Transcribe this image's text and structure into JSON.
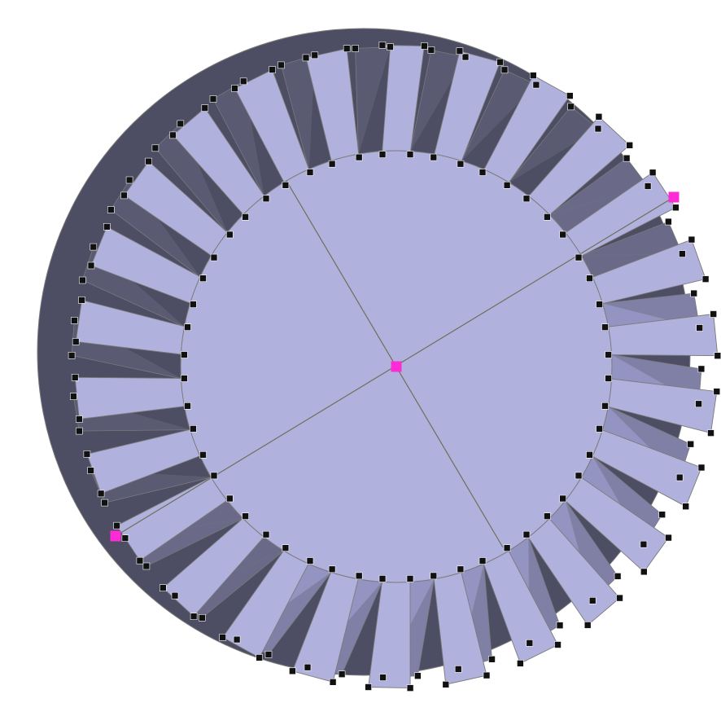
{
  "colors": {
    "background": "#ffffff",
    "face_light": "#b1b1dd",
    "face_mid": "#9494c2",
    "face_dark": "#6a6a88",
    "face_darker": "#4d4d63",
    "edge": "#7a7a7a",
    "vertex_marker": "#111111",
    "selected_marker": "#ff2bd6",
    "axis_line": "#6f6f5a"
  },
  "model": {
    "kind": "spiral bevel gear",
    "tooth_count": 26,
    "twist": "clockwise"
  },
  "selection": {
    "selected_vertices": 3
  }
}
